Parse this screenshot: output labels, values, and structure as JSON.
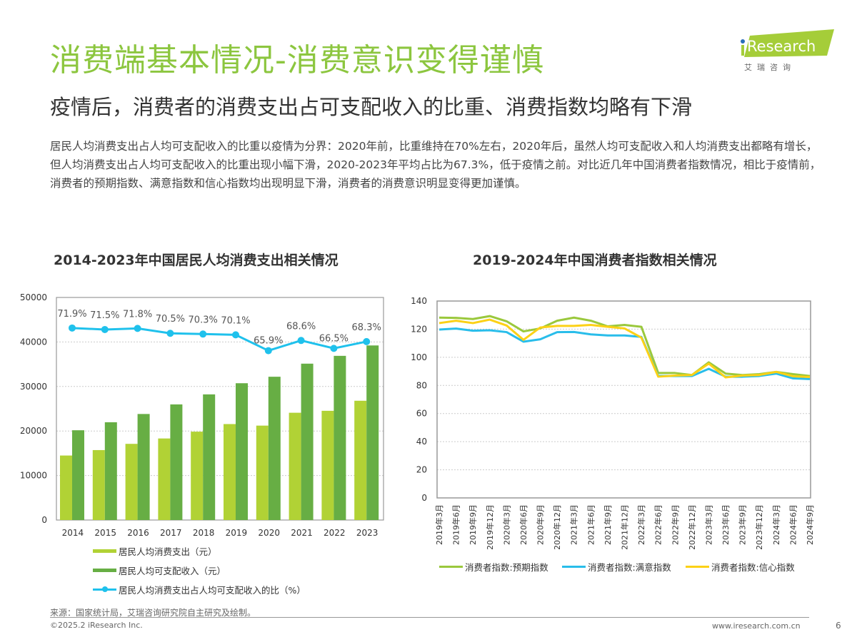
{
  "header": {
    "title": "消费端基本情况-消费意识变得谨慎",
    "subtitle": "疫情后，消费者的消费支出占可支配收入的比重、消费指数均略有下滑",
    "body": "居民人均消费支出占人均可支配收入的比重以疫情为分界：2020年前，比重维持在70%左右，2020年后，虽然人均可支配收入和人均消费支出都略有增长，但人均消费支出占人均可支配收入的比重出现小幅下滑，2020-2023年平均占比为67.3%，低于疫情之前。对比近几年中国消费者指数情况，相比于疫情前，消费者的预期指数、满意指数和信心指数均出现明显下滑，消费者的消费意识明显变得更加谨慎。"
  },
  "logo": {
    "brand": "iResearch",
    "cn": "艾 瑞 咨 询",
    "color": "#a5cd39",
    "dot_color": "#2a6fb8"
  },
  "chart_data": [
    {
      "type": "bar",
      "title": "2014-2023年中国居民人均消费支出相关情况",
      "categories": [
        "2014",
        "2015",
        "2016",
        "2017",
        "2018",
        "2019",
        "2020",
        "2021",
        "2022",
        "2023"
      ],
      "ylim": [
        0,
        50000
      ],
      "yticks": [
        "0",
        "10000",
        "20000",
        "30000",
        "40000",
        "50000"
      ],
      "grid": true,
      "legend_placement": "bottom",
      "series": [
        {
          "name": "居民人均消费支出（元）",
          "kind": "bar",
          "color": "#b1d235",
          "values": [
            14491,
            15712,
            17111,
            18322,
            19853,
            21559,
            21210,
            24100,
            24538,
            26796
          ]
        },
        {
          "name": "居民人均可支配收入（元）",
          "kind": "bar",
          "color": "#67ae44",
          "values": [
            20167,
            21966,
            23821,
            25974,
            28228,
            30733,
            32189,
            35128,
            36883,
            39218
          ]
        },
        {
          "name": "居民人均消费支出占人均可支配收入的比（%）",
          "kind": "line",
          "color": "#1fc1ec",
          "secondary_axis": true,
          "y2lim": [
            21,
            80
          ],
          "values": [
            71.9,
            71.5,
            71.8,
            70.5,
            70.3,
            70.1,
            65.9,
            68.6,
            66.5,
            68.3
          ],
          "labels": [
            "71.9%",
            "71.5%",
            "71.8%",
            "70.5%",
            "70.3%",
            "70.1%",
            "65.9%",
            "68.6%",
            "66.5%",
            "68.3%"
          ]
        }
      ]
    },
    {
      "type": "line",
      "title": "2019-2024年中国消费者指数相关情况",
      "categories": [
        "2019年3月",
        "2019年6月",
        "2019年9月",
        "2019年12月",
        "2020年3月",
        "2020年6月",
        "2020年9月",
        "2020年12月",
        "2021年3月",
        "2021年6月",
        "2021年9月",
        "2021年12月",
        "2022年3月",
        "2022年6月",
        "2022年9月",
        "2022年12月",
        "2023年3月",
        "2023年6月",
        "2023年9月",
        "2023年12月",
        "2024年3月",
        "2024年6月",
        "2024年9月"
      ],
      "ylim": [
        0,
        140
      ],
      "yticks": [
        "0",
        "20",
        "40",
        "60",
        "80",
        "100",
        "120",
        "140"
      ],
      "grid": true,
      "legend_placement": "bottom",
      "series": [
        {
          "name": "消费者指数:预期指数",
          "color": "#9ac83c",
          "values": [
            128.2,
            128,
            127.2,
            129.3,
            125.6,
            118.4,
            120.5,
            126,
            128.2,
            126,
            122,
            123,
            121.7,
            88.8,
            88.8,
            87.4,
            96.4,
            88.4,
            87.4,
            88,
            89.6,
            88,
            86.7
          ]
        },
        {
          "name": "消费者指数:满意指数",
          "color": "#29bdea",
          "values": [
            119.7,
            120.4,
            118.9,
            119.2,
            117.9,
            111.1,
            112.8,
            117.9,
            118,
            116.3,
            115.5,
            115.5,
            114.5,
            86.7,
            86.7,
            86.7,
            91.8,
            86.2,
            86.2,
            86.7,
            88.4,
            85,
            84.5
          ]
        },
        {
          "name": "消费者指数:信心指数",
          "color": "#fcd116",
          "values": [
            124.3,
            126,
            124.3,
            126.8,
            122.6,
            112.4,
            121.2,
            122.3,
            122.3,
            123,
            121.7,
            120.5,
            114,
            86.2,
            87,
            87.4,
            95.5,
            85.7,
            87,
            87.4,
            89.6,
            86.5,
            86
          ]
        }
      ]
    }
  ],
  "footer": {
    "source": "来源：国家统计局，艾瑞咨询研究院自主研究及绘制。",
    "copyright": "©2025.2 iResearch Inc.",
    "site": "www.iresearch.com.cn",
    "page": "6"
  }
}
